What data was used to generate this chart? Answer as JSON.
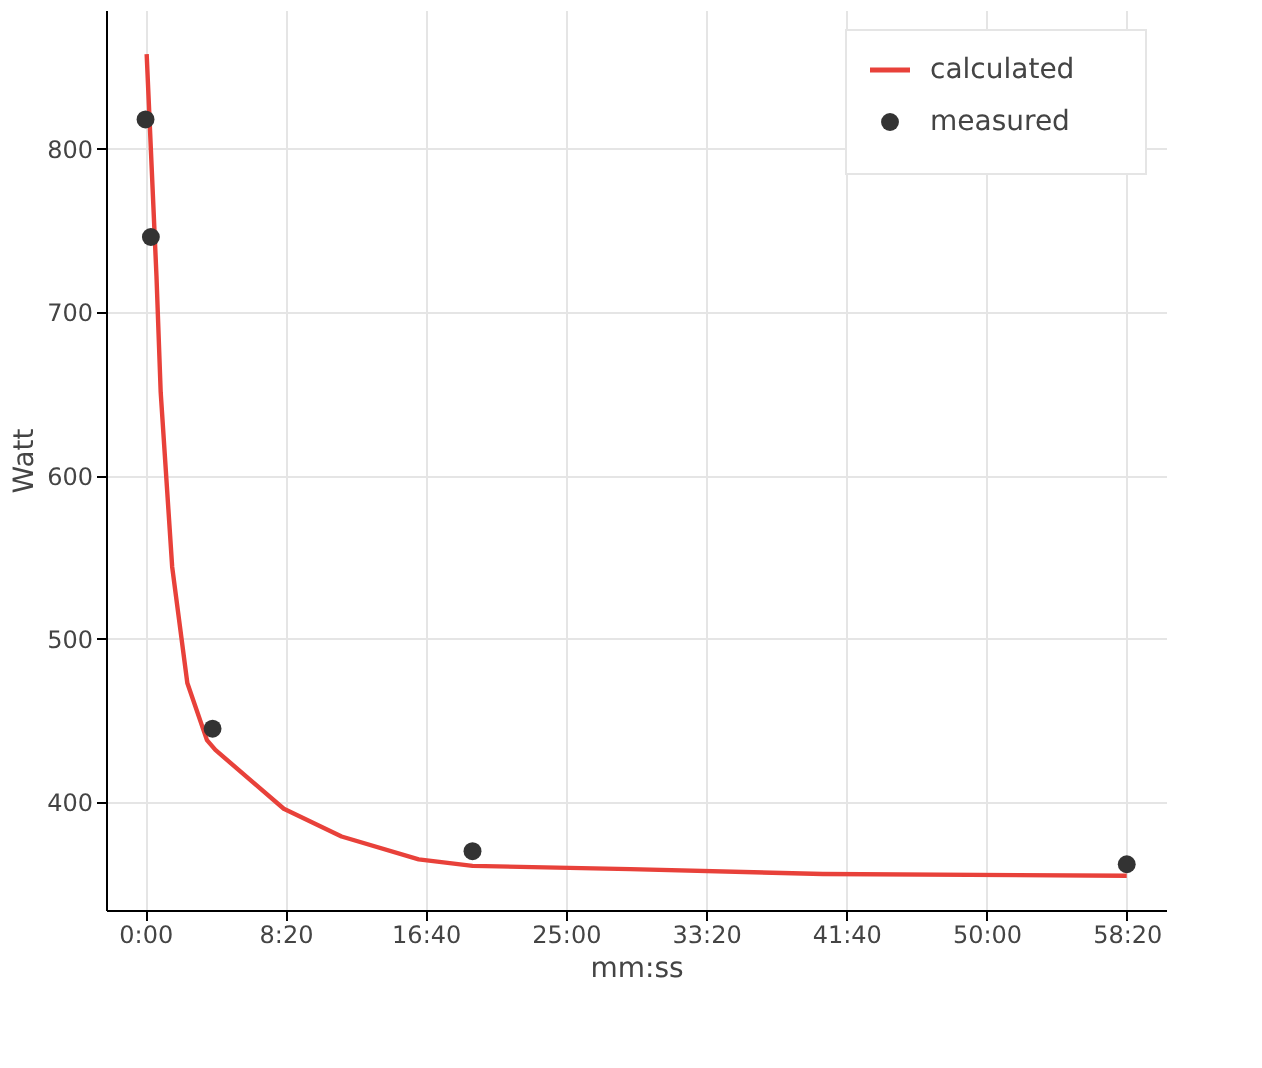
{
  "chart_data": {
    "type": "line",
    "xlabel": "mm:ss",
    "ylabel": "Watt",
    "series": [
      {
        "name": "calculated",
        "color": "#e8413a",
        "x": [
          5,
          40,
          55,
          96,
          150,
          220,
          250,
          494,
          700,
          975,
          1167,
          1730,
          2416,
          3500
        ],
        "values": [
          858,
          722,
          651,
          544,
          473,
          438,
          432,
          396,
          379,
          365,
          361,
          359,
          356,
          355
        ]
      },
      {
        "name": "measured",
        "type": "scatter",
        "color": "#333333",
        "marker": "circle",
        "x": [
          1,
          20,
          240,
          1167,
          3500
        ],
        "values": [
          818,
          746,
          445,
          370,
          362
        ]
      }
    ],
    "xlim": [
      -140,
      3640
    ],
    "ylim": [
      334,
      885
    ],
    "xticks": [
      {
        "value": 0,
        "label": "0:00"
      },
      {
        "value": 500,
        "label": "8:20"
      },
      {
        "value": 1000,
        "label": "16:40"
      },
      {
        "value": 1500,
        "label": "25:00"
      },
      {
        "value": 2000,
        "label": "33:20"
      },
      {
        "value": 2500,
        "label": "41:40"
      },
      {
        "value": 3000,
        "label": "50:00"
      },
      {
        "value": 3500,
        "label": "58:20"
      }
    ],
    "yticks": [
      400,
      500,
      600,
      700,
      800
    ],
    "grid": true,
    "legend": "top right"
  }
}
